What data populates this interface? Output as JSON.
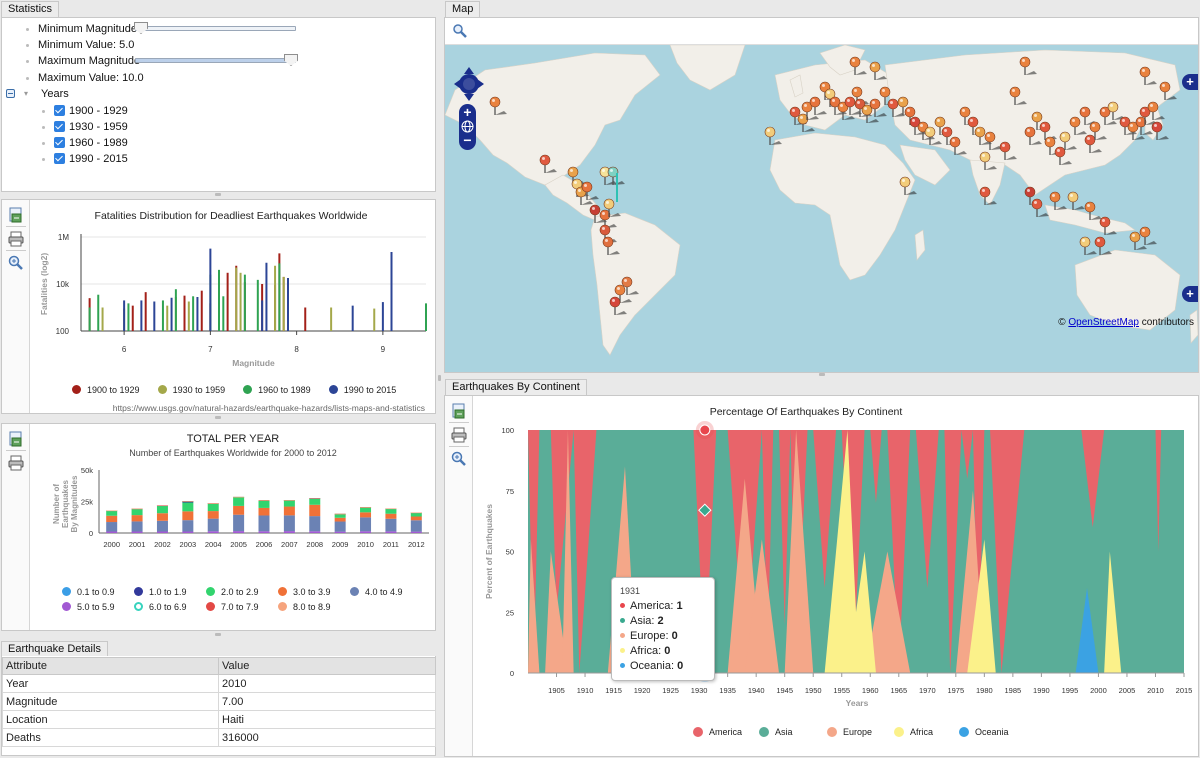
{
  "statistics": {
    "tab_label": "Statistics",
    "min_magnitude_label": "Minimum Magnitude",
    "min_value_text": "Minimum Value: 5.0",
    "max_magnitude_label": "Maximum Magnitude",
    "max_value_text": "Maximum Value: 10.0",
    "min_slider_fraction": 0.0,
    "max_slider_fraction": 1.0,
    "years_label": "Years",
    "year_items": [
      {
        "label": "1900 - 1929",
        "checked": true
      },
      {
        "label": "1930 - 1959",
        "checked": true
      },
      {
        "label": "1960 - 1989",
        "checked": true
      },
      {
        "label": "1990 - 2015",
        "checked": true
      }
    ]
  },
  "map": {
    "tab_label": "Map",
    "attribution_symbol": "©",
    "attribution_link": "OpenStreetMap",
    "attribution_suffix": "contributors",
    "ocean_color": "#aad3df",
    "land_color": "#f2efe9"
  },
  "toolbar_icons": [
    "export-icon",
    "print-icon",
    "zoom-icon"
  ],
  "fatalities_chart": {
    "chart_data": {
      "type": "bar",
      "title": "Fatalities Distribution for Deadliest Earthquakes Worldwide",
      "xlabel": "Magnitude",
      "ylabel": "Fatalities (log2)",
      "y_scale": "log",
      "y_ticks": [
        "100",
        "10k",
        "1M"
      ],
      "x_ticks": [
        "6",
        "7",
        "8",
        "9"
      ],
      "xlim": [
        5.5,
        9.5
      ],
      "ylim": [
        100,
        1000000
      ],
      "series": [
        {
          "name": "1900 to 1929",
          "color": "#a32019",
          "points": [
            [
              5.6,
              2500
            ],
            [
              6.1,
              1200
            ],
            [
              6.25,
              4500
            ],
            [
              6.7,
              3200
            ],
            [
              6.9,
              5200
            ],
            [
              7.0,
              1500
            ],
            [
              7.2,
              30000
            ],
            [
              7.3,
              60000
            ],
            [
              7.4,
              12000
            ],
            [
              7.6,
              10000
            ],
            [
              7.75,
              9000
            ],
            [
              7.8,
              200000
            ],
            [
              7.85,
              20000
            ],
            [
              8.1,
              1000
            ]
          ]
        },
        {
          "name": "1930 to 1959",
          "color": "#a4a84a",
          "points": [
            [
              5.75,
              1000
            ],
            [
              6.0,
              900
            ],
            [
              6.5,
              1200
            ],
            [
              6.6,
              2800
            ],
            [
              6.75,
              1800
            ],
            [
              7.1,
              6000
            ],
            [
              7.3,
              50000
            ],
            [
              7.35,
              30000
            ],
            [
              7.75,
              60000
            ],
            [
              7.85,
              20000
            ],
            [
              8.4,
              1000
            ],
            [
              8.9,
              900
            ]
          ]
        },
        {
          "name": "1960 to 1989",
          "color": "#2fa352",
          "points": [
            [
              5.6,
              1000
            ],
            [
              5.7,
              3500
            ],
            [
              6.05,
              1500
            ],
            [
              6.45,
              2000
            ],
            [
              6.6,
              6000
            ],
            [
              6.8,
              3000
            ],
            [
              7.0,
              25000
            ],
            [
              7.1,
              40000
            ],
            [
              7.15,
              3000
            ],
            [
              7.4,
              25000
            ],
            [
              7.55,
              15000
            ],
            [
              7.8,
              75000
            ],
            [
              9.5,
              1500
            ]
          ]
        },
        {
          "name": "1990 to 2015",
          "color": "#2c4596",
          "points": [
            [
              6.0,
              2000
            ],
            [
              6.2,
              2000
            ],
            [
              6.35,
              1800
            ],
            [
              6.55,
              2600
            ],
            [
              6.85,
              2800
            ],
            [
              7.0,
              320000
            ],
            [
              7.6,
              2000
            ],
            [
              7.65,
              80000
            ],
            [
              7.9,
              18000
            ],
            [
              8.65,
              1200
            ],
            [
              9.0,
              1700
            ],
            [
              9.1,
              230000
            ]
          ]
        }
      ]
    },
    "source_text": "https://www.usgs.gov/natural-hazards/earthquake-hazards/lists-maps-and-statistics"
  },
  "yearly_chart": {
    "chart_data": {
      "type": "bar",
      "title": "TOTAL PER YEAR",
      "subtitle": "Number of Earthquakes Worldwide for 2000 to 2012",
      "xlabel": "",
      "ylabel": "Number of Earthquakes By Magnitudes",
      "y_ticks": [
        "0",
        "25k",
        "50k"
      ],
      "ylim": [
        0,
        50000
      ],
      "categories": [
        "2000",
        "2001",
        "2002",
        "2003",
        "2004",
        "2005",
        "2006",
        "2007",
        "2008",
        "2009",
        "2010",
        "2011",
        "2012"
      ],
      "series": [
        {
          "name": "0.1 to 0.9",
          "color": "#3b9ee6",
          "values": [
            0,
            0,
            0,
            0,
            0,
            0,
            0,
            0,
            0,
            0,
            0,
            0,
            0
          ]
        },
        {
          "name": "1.0 to 1.9",
          "color": "#32399b",
          "values": [
            0,
            0,
            0,
            1000,
            0,
            0,
            0,
            0,
            0,
            0,
            0,
            0,
            0
          ]
        },
        {
          "name": "2.0 to 2.9",
          "color": "#32d46e",
          "values": [
            4000,
            5000,
            6000,
            7000,
            6000,
            7000,
            6000,
            5000,
            5000,
            3000,
            4000,
            4000,
            3000
          ]
        },
        {
          "name": "3.0 to 3.9",
          "color": "#f07137",
          "values": [
            5000,
            5000,
            6000,
            7000,
            6000,
            7000,
            6000,
            7000,
            9000,
            3000,
            4000,
            4000,
            3000
          ]
        },
        {
          "name": "4.0 to 4.9",
          "color": "#6b82b4",
          "values": [
            7500,
            8000,
            8500,
            9000,
            10000,
            13000,
            12500,
            12500,
            12000,
            8000,
            11000,
            10000,
            9000
          ]
        },
        {
          "name": "5.0 to 5.9",
          "color": "#a259d3",
          "values": [
            1200,
            1200,
            1200,
            1200,
            1400,
            1500,
            1400,
            1500,
            1400,
            1100,
            1400,
            1300,
            1100
          ]
        },
        {
          "name": "6.0 to 6.9",
          "color": "#37d3be",
          "values": [
            150,
            150,
            150,
            150,
            150,
            150,
            150,
            150,
            150,
            150,
            150,
            150,
            150
          ]
        },
        {
          "name": "7.0 to 7.9",
          "color": "#e34945",
          "values": [
            15,
            15,
            13,
            14,
            14,
            10,
            9,
            14,
            12,
            16,
            23,
            19,
            12
          ]
        },
        {
          "name": "8.0 to 8.9",
          "color": "#f6a47d",
          "values": [
            1,
            1,
            0,
            1,
            2,
            1,
            2,
            4,
            0,
            1,
            1,
            1,
            2
          ]
        }
      ]
    }
  },
  "details": {
    "tab_label": "Earthquake Details",
    "columns": [
      "Attribute",
      "Value"
    ],
    "rows": [
      [
        "Year",
        "2010"
      ],
      [
        "Magnitude",
        "7.00"
      ],
      [
        "Location",
        "Haiti"
      ],
      [
        "Deaths",
        "316000"
      ]
    ]
  },
  "continent_chart": {
    "tab_label": "Earthquakes By Continent",
    "chart_data": {
      "type": "area",
      "stacked_percent": true,
      "title": "Percentage Of Earthquakes By Continent",
      "xlabel": "Years",
      "ylabel": "Percent of Earthquakes",
      "xlim": [
        1900,
        2015
      ],
      "ylim": [
        0,
        100
      ],
      "y_ticks": [
        0,
        25,
        50,
        75,
        100
      ],
      "x_ticks": [
        1905,
        1910,
        1915,
        1920,
        1925,
        1930,
        1935,
        1940,
        1945,
        1950,
        1955,
        1960,
        1965,
        1970,
        1975,
        1980,
        1985,
        1990,
        1995,
        2000,
        2005,
        2010,
        2015
      ],
      "series": [
        {
          "name": "America",
          "color": "#e8646a"
        },
        {
          "name": "Asia",
          "color": "#5aad98"
        },
        {
          "name": "Europe",
          "color": "#f4a789"
        },
        {
          "name": "Africa",
          "color": "#fbf18a"
        },
        {
          "name": "Oceania",
          "color": "#3ba2e3"
        }
      ],
      "peaks": [
        {
          "s": "America",
          "a": 1900,
          "p": 1901,
          "b": 1902,
          "v": 100
        },
        {
          "s": "America",
          "a": 1904,
          "p": 1905,
          "b": 1908,
          "v": 75
        },
        {
          "s": "America",
          "a": 1908,
          "p": 1909,
          "b": 1912,
          "v": 100
        },
        {
          "s": "America",
          "a": 1929,
          "p": 1931,
          "b": 1933,
          "v": 100
        },
        {
          "s": "America",
          "a": 1935,
          "p": 1938,
          "b": 1941,
          "v": 100
        },
        {
          "s": "America",
          "a": 1941,
          "p": 1942,
          "b": 1943,
          "v": 90
        },
        {
          "s": "America",
          "a": 1944,
          "p": 1945,
          "b": 1946,
          "v": 80
        },
        {
          "s": "America",
          "a": 1946,
          "p": 1947,
          "b": 1949,
          "v": 100
        },
        {
          "s": "America",
          "a": 1950,
          "p": 1952,
          "b": 1954,
          "v": 65
        },
        {
          "s": "America",
          "a": 1955,
          "p": 1957,
          "b": 1959,
          "v": 100
        },
        {
          "s": "America",
          "a": 1960,
          "p": 1961,
          "b": 1962,
          "v": 30
        },
        {
          "s": "America",
          "a": 1963,
          "p": 1965,
          "b": 1967,
          "v": 100
        },
        {
          "s": "America",
          "a": 1968,
          "p": 1970,
          "b": 1972,
          "v": 65
        },
        {
          "s": "America",
          "a": 1973,
          "p": 1974,
          "b": 1976,
          "v": 100
        },
        {
          "s": "America",
          "a": 1976,
          "p": 1977,
          "b": 1978,
          "v": 20
        },
        {
          "s": "America",
          "a": 1978,
          "p": 1979,
          "b": 1980,
          "v": 100
        },
        {
          "s": "America",
          "a": 1981,
          "p": 1983,
          "b": 1987,
          "v": 100
        },
        {
          "s": "America",
          "a": 1997,
          "p": 1999,
          "b": 2001,
          "v": 40
        },
        {
          "s": "America",
          "a": 2010,
          "p": 2010.5,
          "b": 2011,
          "v": 50
        },
        {
          "s": "Europe",
          "a": 1900,
          "p": 1900.5,
          "b": 1902,
          "v": 55
        },
        {
          "s": "Europe",
          "a": 1903,
          "p": 1904,
          "b": 1907,
          "v": 50
        },
        {
          "s": "Europe",
          "a": 1906,
          "p": 1907,
          "b": 1908,
          "v": 100
        },
        {
          "s": "Europe",
          "a": 1914,
          "p": 1917,
          "b": 1919,
          "v": 85
        },
        {
          "s": "Europe",
          "a": 1935,
          "p": 1938,
          "b": 1941,
          "v": 80
        },
        {
          "s": "Europe",
          "a": 1938,
          "p": 1941,
          "b": 1944,
          "v": 55
        },
        {
          "s": "Europe",
          "a": 1945,
          "p": 1947,
          "b": 1950,
          "v": 100
        },
        {
          "s": "Europe",
          "a": 1959,
          "p": 1963,
          "b": 1967,
          "v": 50
        },
        {
          "s": "Europe",
          "a": 1975,
          "p": 1978,
          "b": 1980,
          "v": 75
        },
        {
          "s": "Africa",
          "a": 1952,
          "p": 1956,
          "b": 1958,
          "v": 100
        },
        {
          "s": "Africa",
          "a": 1956,
          "p": 1959,
          "b": 1961,
          "v": 50
        },
        {
          "s": "Africa",
          "a": 1977,
          "p": 1980,
          "b": 1982,
          "v": 55
        },
        {
          "s": "Africa",
          "a": 2001,
          "p": 2002,
          "b": 2004,
          "v": 50
        },
        {
          "s": "Oceania",
          "a": 1996,
          "p": 1998,
          "b": 2000,
          "v": 35
        }
      ],
      "markers": [
        {
          "year": 1931,
          "value": 100,
          "shape": "circle",
          "color": "#e8464d"
        },
        {
          "year": 1931,
          "value": 67,
          "shape": "diamond",
          "color": "#3aa98f"
        },
        {
          "year": 1931,
          "value": 0,
          "shape": "triangle",
          "color": "#2b8ad4"
        }
      ]
    },
    "tooltip": {
      "header": "1931",
      "rows": [
        {
          "label": "America:",
          "value": "1",
          "color": "#e8464d"
        },
        {
          "label": "Asia:",
          "value": "2",
          "color": "#3aa98f"
        },
        {
          "label": "Europe:",
          "value": "0",
          "color": "#f4a789"
        },
        {
          "label": "Africa:",
          "value": "0",
          "color": "#fbf18a"
        },
        {
          "label": "Oceania:",
          "value": "0",
          "color": "#3ba2e3"
        }
      ]
    }
  }
}
